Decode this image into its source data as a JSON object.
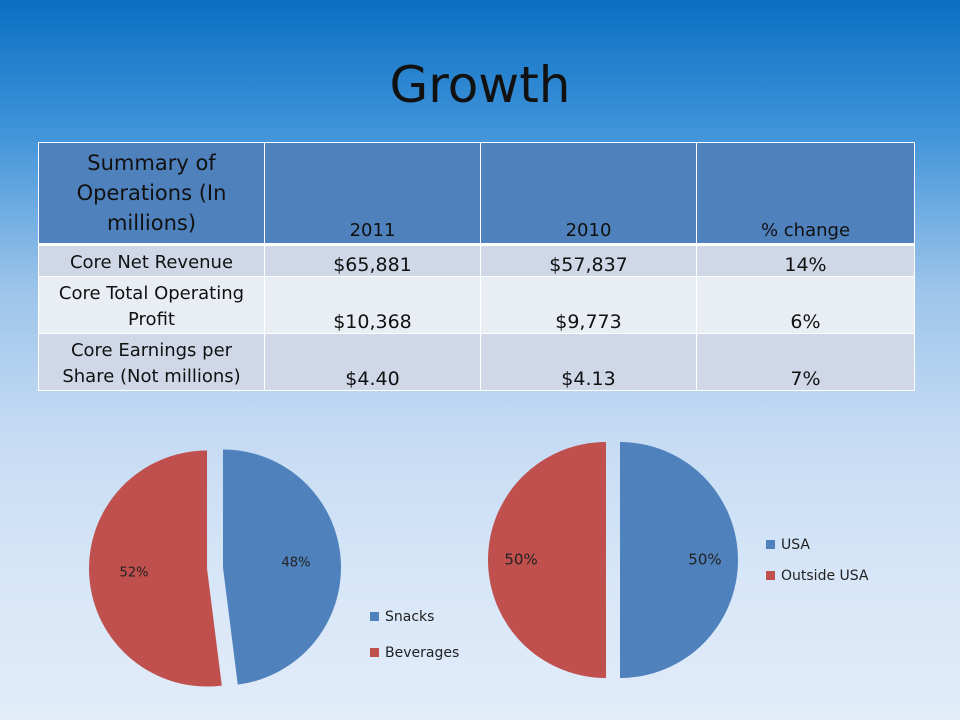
{
  "title": "Growth",
  "table": {
    "headers": [
      "Summary of Operations (In millions)",
      "2011",
      "2010",
      "% change"
    ],
    "rows": [
      [
        "Core Net Revenue",
        "$65,881",
        "$57,837",
        "14%"
      ],
      [
        "Core Total Operating Profit",
        "$10,368",
        "$9,773",
        "6%"
      ],
      [
        "Core Earnings per Share (Not millions)",
        "$4.40",
        "$4.13",
        "7%"
      ]
    ]
  },
  "chart_data": [
    {
      "type": "pie",
      "categories": [
        "Snacks",
        "Beverages"
      ],
      "values": [
        48,
        52
      ],
      "labels": [
        "48%",
        "52%"
      ],
      "colors": [
        "#4f81bd",
        "#c0504d"
      ],
      "legend_position": "right"
    },
    {
      "type": "pie",
      "categories": [
        "USA",
        "Outside USA"
      ],
      "values": [
        50,
        50
      ],
      "labels": [
        "50%",
        "50%"
      ],
      "colors": [
        "#4f81bd",
        "#c0504d"
      ],
      "legend_position": "right"
    }
  ]
}
